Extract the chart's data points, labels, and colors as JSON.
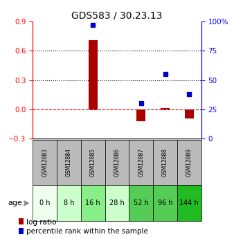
{
  "title": "GDS583 / 30.23.13",
  "samples": [
    "GSM12883",
    "GSM12884",
    "GSM12885",
    "GSM12886",
    "GSM12887",
    "GSM12888",
    "GSM12889"
  ],
  "ages": [
    "0 h",
    "8 h",
    "16 h",
    "28 h",
    "52 h",
    "96 h",
    "144 h"
  ],
  "age_colors": [
    "#eeffee",
    "#ccffcc",
    "#88ee88",
    "#ccffcc",
    "#55cc55",
    "#55cc55",
    "#22bb22"
  ],
  "gsm_bg_color": "#bbbbbb",
  "log_ratios": [
    0.0,
    0.0,
    0.71,
    0.0,
    -0.12,
    0.01,
    -0.09
  ],
  "percentiles": [
    null,
    null,
    97,
    null,
    30,
    55,
    38
  ],
  "ylim_left": [
    -0.3,
    0.9
  ],
  "ylim_right": [
    0,
    100
  ],
  "yticks_left": [
    -0.3,
    0.0,
    0.3,
    0.6,
    0.9
  ],
  "yticks_right": [
    0,
    25,
    50,
    75,
    100
  ],
  "ytick_labels_right": [
    "0",
    "25",
    "50",
    "75",
    "100%"
  ],
  "bar_color": "#aa0000",
  "square_color": "#0000cc",
  "zero_line_color": "#cc0000",
  "grid_color": "#000000",
  "title_fontsize": 10,
  "tick_fontsize": 7.5,
  "legend_fontsize": 7.5
}
